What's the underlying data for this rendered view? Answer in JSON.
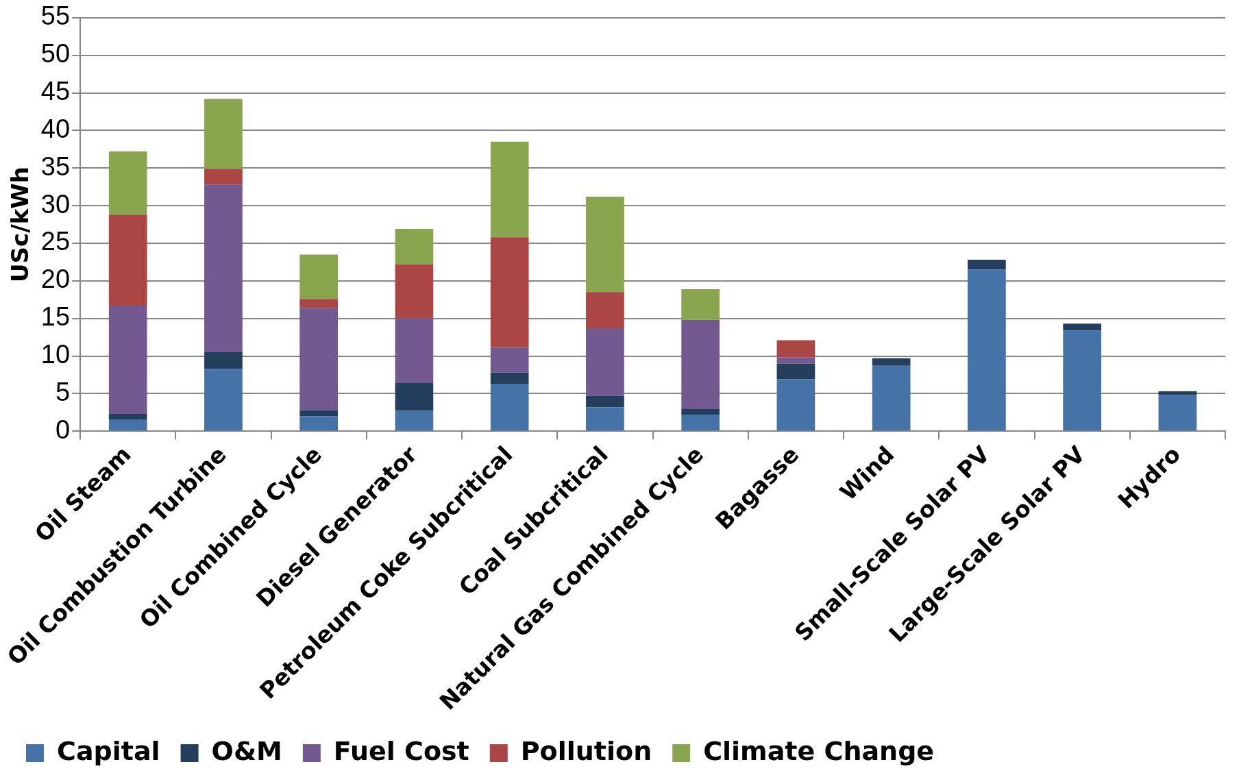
{
  "chart_data": {
    "type": "bar",
    "stacked": true,
    "ylabel": "USc/kWh",
    "categories": [
      "Oil Steam",
      "Oil Combustion Turbine",
      "Oil Combined Cycle",
      "Diesel Generator",
      "Petroleum Coke Subcritical",
      "Coal Subcritical",
      "Natural Gas Combined Cycle",
      "Bagasse",
      "Wind",
      "Small-Scale Solar PV",
      "Large-Scale Solar PV",
      "Hydro"
    ],
    "series": [
      {
        "name": "Capital",
        "color": "#4572a7",
        "values": [
          1.5,
          8.3,
          2.0,
          2.7,
          6.3,
          3.2,
          2.2,
          6.9,
          8.7,
          21.5,
          13.4,
          4.8
        ]
      },
      {
        "name": "O&M",
        "color": "#243e5e",
        "values": [
          0.8,
          2.2,
          0.8,
          3.7,
          1.5,
          1.5,
          0.8,
          2.1,
          1.0,
          1.3,
          0.9,
          0.5
        ]
      },
      {
        "name": "Fuel Cost",
        "color": "#72598f",
        "values": [
          14.4,
          22.3,
          13.6,
          8.6,
          3.3,
          9.0,
          11.8,
          0.8,
          0,
          0,
          0,
          0
        ]
      },
      {
        "name": "Pollution",
        "color": "#aa4643",
        "values": [
          12.1,
          2.1,
          1.2,
          7.2,
          14.7,
          4.8,
          0,
          2.3,
          0,
          0,
          0,
          0
        ]
      },
      {
        "name": "Climate Change",
        "color": "#89a54e",
        "values": [
          8.4,
          9.3,
          5.9,
          4.7,
          12.7,
          12.7,
          4.1,
          0,
          0,
          0,
          0,
          0
        ]
      }
    ],
    "ylim": [
      0,
      55
    ],
    "yticks": [
      0,
      5,
      10,
      15,
      20,
      25,
      30,
      35,
      40,
      45,
      50,
      55
    ],
    "grid": "y",
    "legend": "bottom left"
  }
}
